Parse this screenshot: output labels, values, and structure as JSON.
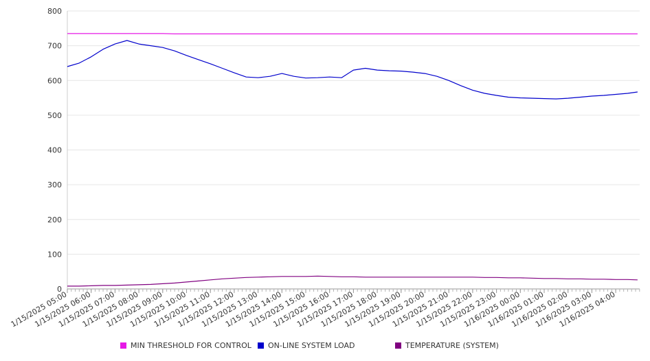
{
  "chart_data": {
    "type": "line",
    "title": "",
    "xlabel": "",
    "ylabel": "",
    "ylim": [
      0,
      800
    ],
    "y_ticks": [
      "0",
      "100",
      "200",
      "300",
      "400",
      "500",
      "600",
      "700",
      "800"
    ],
    "x_tick_labels": [
      "1/15/2025 05:00",
      "1/15/2025 06:00",
      "1/15/2025 07:00",
      "1/15/2025 08:00",
      "1/15/2025 09:00",
      "1/15/2025 10:00",
      "1/15/2025 11:00",
      "1/15/2025 12:00",
      "1/15/2025 13:00",
      "1/15/2025 14:00",
      "1/15/2025 15:00",
      "1/15/2025 16:00",
      "1/15/2025 17:00",
      "1/15/2025 18:00",
      "1/15/2025 19:00",
      "1/15/2025 20:00",
      "1/15/2025 21:00",
      "1/15/2025 22:00",
      "1/15/2025 23:00",
      "1/16/2025 00:00",
      "1/16/2025 01:00",
      "1/16/2025 02:00",
      "1/16/2025 03:00",
      "1/16/2025 04:00"
    ],
    "x": [
      "1/15/2025 05:00",
      "1/15/2025 05:30",
      "1/15/2025 06:00",
      "1/15/2025 06:30",
      "1/15/2025 07:00",
      "1/15/2025 07:30",
      "1/15/2025 08:00",
      "1/15/2025 08:30",
      "1/15/2025 09:00",
      "1/15/2025 09:30",
      "1/15/2025 10:00",
      "1/15/2025 10:30",
      "1/15/2025 11:00",
      "1/15/2025 11:30",
      "1/15/2025 12:00",
      "1/15/2025 12:30",
      "1/15/2025 13:00",
      "1/15/2025 13:30",
      "1/15/2025 14:00",
      "1/15/2025 14:30",
      "1/15/2025 15:00",
      "1/15/2025 15:30",
      "1/15/2025 16:00",
      "1/15/2025 16:30",
      "1/15/2025 17:00",
      "1/15/2025 17:30",
      "1/15/2025 18:00",
      "1/15/2025 18:30",
      "1/15/2025 19:00",
      "1/15/2025 19:30",
      "1/15/2025 20:00",
      "1/15/2025 20:30",
      "1/15/2025 21:00",
      "1/15/2025 21:30",
      "1/15/2025 22:00",
      "1/15/2025 22:30",
      "1/15/2025 23:00",
      "1/15/2025 23:30",
      "1/16/2025 00:00",
      "1/16/2025 00:30",
      "1/16/2025 01:00",
      "1/16/2025 01:30",
      "1/16/2025 02:00",
      "1/16/2025 02:30",
      "1/16/2025 03:00",
      "1/16/2025 03:30",
      "1/16/2025 04:00",
      "1/16/2025 04:30",
      "1/16/2025 04:55"
    ],
    "series": [
      {
        "name": "MIN THRESHOLD FOR CONTROL",
        "color": "#e619e6",
        "values": [
          735,
          735,
          735,
          735,
          735,
          735,
          735,
          735,
          735,
          734,
          734,
          734,
          734,
          734,
          734,
          734,
          734,
          734,
          734,
          734,
          734,
          734,
          734,
          734,
          734,
          734,
          734,
          734,
          734,
          734,
          734,
          734,
          734,
          734,
          734,
          734,
          734,
          734,
          734,
          734,
          734,
          734,
          734,
          734,
          734,
          734,
          734,
          734,
          734
        ]
      },
      {
        "name": "ON-LINE SYSTEM LOAD",
        "color": "#0000cc",
        "values": [
          640,
          650,
          668,
          690,
          705,
          715,
          705,
          700,
          695,
          685,
          672,
          660,
          648,
          635,
          622,
          610,
          608,
          612,
          620,
          612,
          607,
          608,
          610,
          608,
          630,
          635,
          630,
          628,
          627,
          624,
          620,
          612,
          600,
          585,
          572,
          563,
          557,
          552,
          550,
          549,
          548,
          547,
          549,
          552,
          555,
          557,
          560,
          563,
          567
        ]
      },
      {
        "name": "TEMPERATURE (SYSTEM)",
        "color": "#800080",
        "values": [
          8,
          8,
          9,
          10,
          10,
          11,
          12,
          13,
          15,
          17,
          20,
          23,
          26,
          29,
          31,
          33,
          34,
          35,
          36,
          36,
          36,
          37,
          36,
          35,
          35,
          34,
          34,
          34,
          34,
          34,
          34,
          34,
          34,
          34,
          34,
          33,
          33,
          32,
          32,
          31,
          30,
          30,
          29,
          29,
          28,
          28,
          27,
          27,
          26
        ]
      }
    ],
    "grid": true,
    "legend_position": "bottom"
  }
}
